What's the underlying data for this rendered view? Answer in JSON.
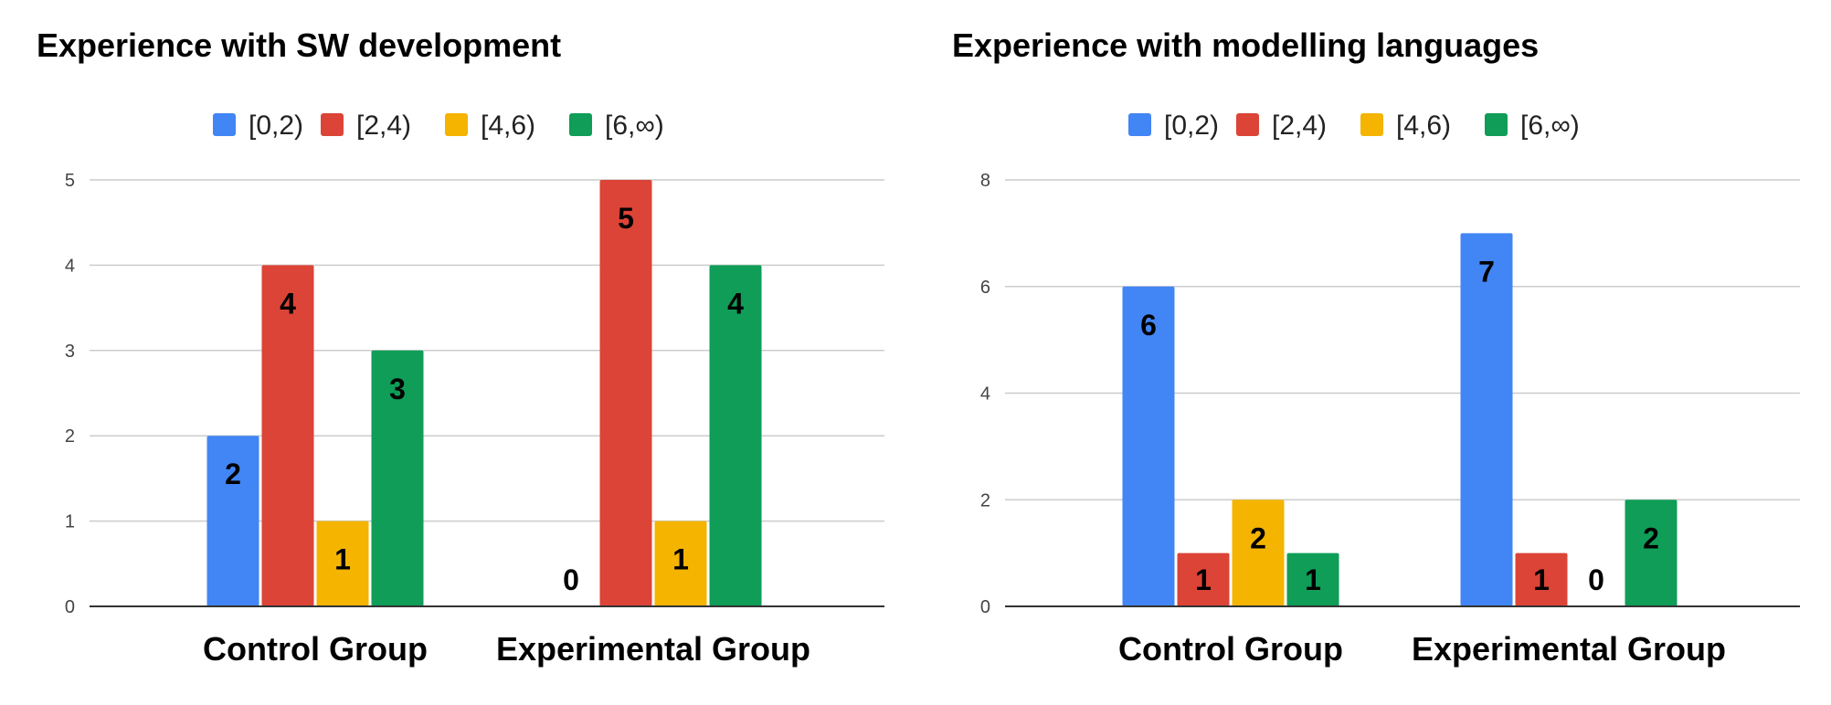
{
  "chart_data": [
    {
      "type": "bar",
      "title": "Experience with SW development",
      "categories": [
        "Control Group",
        "Experimental Group"
      ],
      "series": [
        {
          "name": "[0,2)",
          "color": "#4285F4",
          "values": [
            2,
            0
          ]
        },
        {
          "name": "[2,4)",
          "color": "#DB4437",
          "values": [
            4,
            5
          ]
        },
        {
          "name": "[4,6)",
          "color": "#F4B400",
          "values": [
            1,
            1
          ]
        },
        {
          "name": "[6,∞)",
          "color": "#0F9D58",
          "values": [
            3,
            4
          ]
        }
      ],
      "ylim": [
        0,
        5
      ],
      "yticks": [
        "0",
        "1",
        "2",
        "3",
        "4",
        "5"
      ],
      "xlabel": "",
      "ylabel": "",
      "grid": true,
      "legend": "top"
    },
    {
      "type": "bar",
      "title": "Experience with modelling languages",
      "categories": [
        "Control Group",
        "Experimental Group"
      ],
      "series": [
        {
          "name": "[0,2)",
          "color": "#4285F4",
          "values": [
            6,
            7
          ]
        },
        {
          "name": "[2,4)",
          "color": "#DB4437",
          "values": [
            1,
            1
          ]
        },
        {
          "name": "[4,6)",
          "color": "#F4B400",
          "values": [
            2,
            0
          ]
        },
        {
          "name": "[6,∞)",
          "color": "#0F9D58",
          "values": [
            1,
            2
          ]
        }
      ],
      "ylim": [
        0,
        8
      ],
      "yticks": [
        "0",
        "2",
        "4",
        "6",
        "8"
      ],
      "xlabel": "",
      "ylabel": "",
      "grid": true,
      "legend": "top"
    }
  ]
}
